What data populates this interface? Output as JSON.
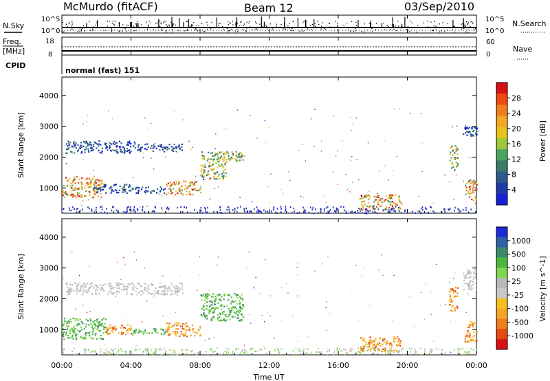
{
  "header": {
    "station": "McMurdo (fitACF)",
    "beam": "Beam 12",
    "date": "03/Sep/2010"
  },
  "strips": {
    "nsky_label": "N.Sky",
    "nsky_ticks": [
      "10^5",
      "10^0"
    ],
    "nsearch_label": "N.Search",
    "nsearch_ticks": [
      "10^5",
      "10^0"
    ],
    "freq_label": "Freq.",
    "freq_unit": "[MHz]",
    "freq_ticks": [
      "18",
      "8"
    ],
    "nave_label": "Nave",
    "nave_ticks": [
      "60",
      "0"
    ],
    "cpid_label": "CPID",
    "cpid_value": "normal (fast) 151"
  },
  "xaxis": {
    "label": "Time UT",
    "ticks": [
      "00:00",
      "04:00",
      "08:00",
      "12:00",
      "16:00",
      "20:00",
      "00:00"
    ],
    "hours": [
      0,
      4,
      8,
      12,
      16,
      20,
      24
    ]
  },
  "chart_data": [
    {
      "type": "heatmap",
      "name": "power",
      "ylabel": "Slant Range [km]",
      "ylim": [
        180,
        4600
      ],
      "yticks": [
        1000,
        2000,
        3000,
        4000
      ],
      "xlim": [
        0,
        24
      ],
      "colorbar": {
        "label": "Power [dB]",
        "ticks": [
          "28",
          "24",
          "20",
          "16",
          "12",
          "8",
          "4"
        ],
        "colors": [
          "#d81010",
          "#ef4a12",
          "#f27d1c",
          "#f5a623",
          "#e8c21b",
          "#9ec83a",
          "#4aa55c",
          "#3a7a6a",
          "#2d5a8c",
          "#1e3aa8",
          "#1a1fd8"
        ]
      },
      "regions": [
        {
          "t": [
            0.0,
            2.3
          ],
          "r": [
            700,
            1400
          ],
          "level": "strong"
        },
        {
          "t": [
            0.2,
            4.2
          ],
          "r": [
            2150,
            2550
          ],
          "level": "weak"
        },
        {
          "t": [
            4.2,
            7.0
          ],
          "r": [
            2200,
            2450
          ],
          "level": "weak"
        },
        {
          "t": [
            1.8,
            4.0
          ],
          "r": [
            850,
            1150
          ],
          "level": "weak"
        },
        {
          "t": [
            4.0,
            6.0
          ],
          "r": [
            850,
            1050
          ],
          "level": "weak"
        },
        {
          "t": [
            6.0,
            8.0
          ],
          "r": [
            800,
            1250
          ],
          "level": "strong"
        },
        {
          "t": [
            8.0,
            9.5
          ],
          "r": [
            1300,
            2200
          ],
          "level": "medium"
        },
        {
          "t": [
            9.5,
            10.5
          ],
          "r": [
            1900,
            2200
          ],
          "level": "medium"
        },
        {
          "t": [
            17.2,
            19.6
          ],
          "r": [
            300,
            800
          ],
          "level": "strong"
        },
        {
          "t": [
            22.4,
            22.9
          ],
          "r": [
            1600,
            2400
          ],
          "level": "medium"
        },
        {
          "t": [
            23.3,
            24.0
          ],
          "r": [
            600,
            1300
          ],
          "level": "strong"
        },
        {
          "t": [
            23.2,
            24.0
          ],
          "r": [
            2700,
            3000
          ],
          "level": "weak"
        }
      ]
    },
    {
      "type": "heatmap",
      "name": "velocity",
      "ylabel": "Slant Range [km]",
      "ylim": [
        180,
        4600
      ],
      "yticks": [
        1000,
        2000,
        3000,
        4000
      ],
      "xlim": [
        0,
        24
      ],
      "colorbar": {
        "label": "Velocity [m s^-1]",
        "ticks": [
          "1000",
          "500",
          "100",
          "25",
          "-25",
          "-100",
          "-500",
          "-1000"
        ],
        "colors": [
          "#1a2bd8",
          "#2f5fa8",
          "#3a8a6a",
          "#4cb83a",
          "#7fd64f",
          "#b8b8b8",
          "#c8c8c8",
          "#f5c21b",
          "#f5a623",
          "#f07d1c",
          "#e24a12",
          "#d81010"
        ]
      },
      "regions": [
        {
          "t": [
            0.0,
            2.5
          ],
          "r": [
            700,
            1400
          ],
          "level": "green"
        },
        {
          "t": [
            0.2,
            7.0
          ],
          "r": [
            2150,
            2550
          ],
          "level": "grey"
        },
        {
          "t": [
            2.5,
            4.0
          ],
          "r": [
            850,
            1200
          ],
          "level": "orange"
        },
        {
          "t": [
            4.0,
            6.0
          ],
          "r": [
            850,
            1050
          ],
          "level": "green"
        },
        {
          "t": [
            6.0,
            8.0
          ],
          "r": [
            800,
            1250
          ],
          "level": "orange"
        },
        {
          "t": [
            8.0,
            10.5
          ],
          "r": [
            1300,
            2200
          ],
          "level": "green"
        },
        {
          "t": [
            17.2,
            19.6
          ],
          "r": [
            300,
            800
          ],
          "level": "orange"
        },
        {
          "t": [
            22.4,
            22.9
          ],
          "r": [
            1600,
            2400
          ],
          "level": "orange"
        },
        {
          "t": [
            23.3,
            24.0
          ],
          "r": [
            600,
            1300
          ],
          "level": "orange"
        },
        {
          "t": [
            23.2,
            24.0
          ],
          "r": [
            2300,
            3000
          ],
          "level": "grey"
        }
      ]
    }
  ]
}
